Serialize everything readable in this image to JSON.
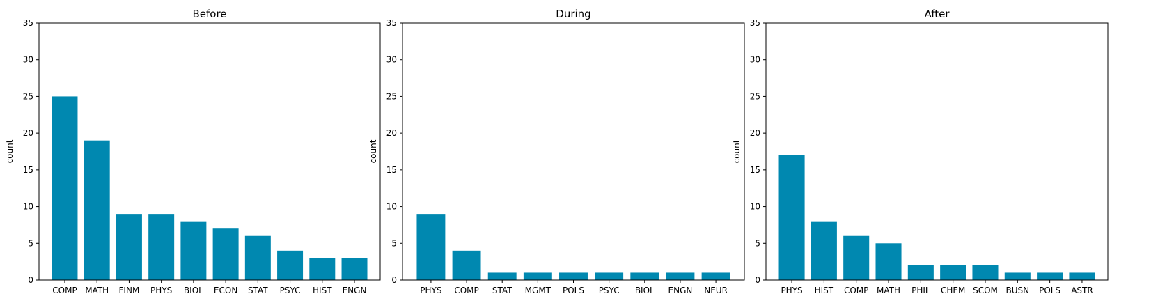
{
  "colors": {
    "bar": "#0088b0",
    "axis": "#000000",
    "background": "#ffffff"
  },
  "chart_data": [
    {
      "type": "bar",
      "title": "Before",
      "ylabel": "count",
      "ylim": [
        0,
        35
      ],
      "yticks": [
        0,
        5,
        10,
        15,
        20,
        25,
        30,
        35
      ],
      "categories": [
        "COMP",
        "MATH",
        "FINM",
        "PHYS",
        "BIOL",
        "ECON",
        "STAT",
        "PSYC",
        "HIST",
        "ENGN"
      ],
      "values": [
        25,
        19,
        9,
        9,
        8,
        7,
        6,
        4,
        3,
        3
      ]
    },
    {
      "type": "bar",
      "title": "During",
      "ylabel": "count",
      "ylim": [
        0,
        35
      ],
      "yticks": [
        0,
        5,
        10,
        15,
        20,
        25,
        30,
        35
      ],
      "categories": [
        "PHYS",
        "COMP",
        "STAT",
        "MGMT",
        "POLS",
        "PSYC",
        "BIOL",
        "ENGN",
        "NEUR"
      ],
      "values": [
        9,
        4,
        1,
        1,
        1,
        1,
        1,
        1,
        1
      ]
    },
    {
      "type": "bar",
      "title": "After",
      "ylabel": "count",
      "ylim": [
        0,
        35
      ],
      "yticks": [
        0,
        5,
        10,
        15,
        20,
        25,
        30,
        35
      ],
      "categories": [
        "PHYS",
        "HIST",
        "COMP",
        "MATH",
        "PHIL",
        "CHEM",
        "SCOM",
        "BUSN",
        "POLS",
        "ASTR"
      ],
      "values": [
        17,
        8,
        6,
        5,
        2,
        2,
        2,
        1,
        1,
        1
      ]
    }
  ]
}
